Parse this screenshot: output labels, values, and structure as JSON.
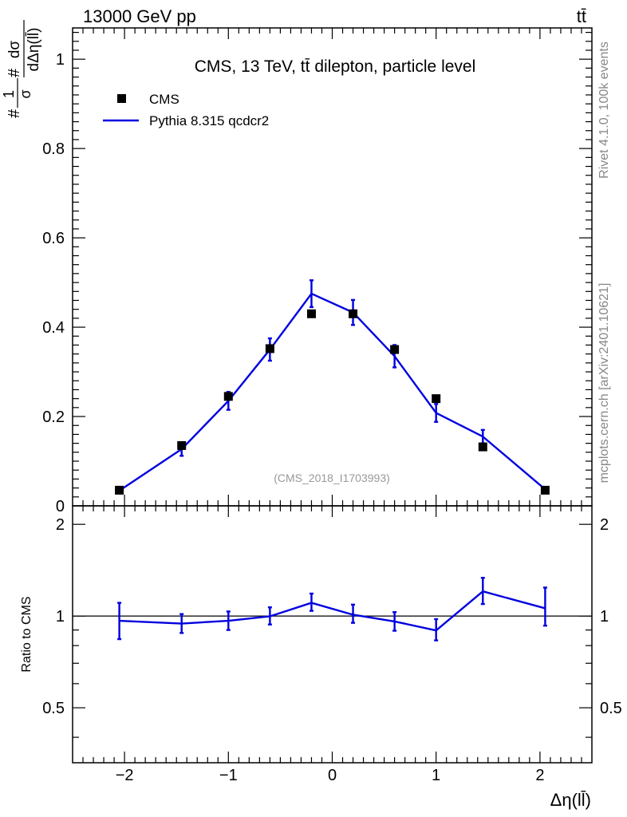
{
  "header": {
    "left": "13000 GeV pp",
    "right": "tt̄"
  },
  "side_labels": {
    "rivet": "Rivet 4.1.0,  100k events",
    "source": "mcplots.cern.ch [arXiv:2401.10621]"
  },
  "colors": {
    "data": "#000000",
    "mc": "#0000e0",
    "watermark": "#999999"
  },
  "chart_data": [
    {
      "type": "scatter",
      "panel": "main",
      "title": "CMS, 13 TeV, tt̄ dilepton, particle level",
      "watermark": "(CMS_2018_I1703993)",
      "ylabel": "#1/σ# dσ/dΔη(ll̄)",
      "ylabel_parts": {
        "hash1": "#",
        "num1": "1",
        "den1": "σ",
        "hash2": "#",
        "num2": "dσ",
        "den2": "dΔη(ll̄)"
      },
      "xlim": [
        -2.5,
        2.5
      ],
      "ylim": [
        0,
        1.07
      ],
      "yticks": [
        0,
        0.2,
        0.4,
        0.6,
        0.8,
        1
      ],
      "ytick_labels": [
        "0",
        "0.2",
        "0.4",
        "0.6",
        "0.8",
        "1"
      ],
      "legend": {
        "position": "top-left",
        "entries": [
          "CMS",
          "Pythia 8.315 qcdcr2"
        ]
      },
      "series": [
        {
          "name": "CMS",
          "style": "markers",
          "x": [
            -2.05,
            -1.45,
            -1.0,
            -0.6,
            -0.2,
            0.2,
            0.6,
            1.0,
            1.45,
            2.05
          ],
          "y": [
            0.035,
            0.135,
            0.245,
            0.352,
            0.43,
            0.43,
            0.35,
            0.24,
            0.132,
            0.035
          ]
        },
        {
          "name": "Pythia 8.315 qcdcr2",
          "style": "line",
          "x": [
            -2.05,
            -1.45,
            -1.0,
            -0.6,
            -0.2,
            0.2,
            0.6,
            1.0,
            1.45,
            2.05
          ],
          "y": [
            0.034,
            0.127,
            0.235,
            0.35,
            0.475,
            0.433,
            0.335,
            0.208,
            0.155,
            0.037
          ],
          "err": [
            0.003,
            0.015,
            0.02,
            0.025,
            0.03,
            0.028,
            0.025,
            0.02,
            0.015,
            0.004
          ]
        }
      ]
    },
    {
      "type": "line",
      "panel": "ratio",
      "ylabel": "Ratio to CMS",
      "xlabel": "Δη(ll̄)",
      "xlim": [
        -2.5,
        2.5
      ],
      "ylim": [
        0.33,
        2.3
      ],
      "xticks": [
        -2,
        -1,
        0,
        1,
        2
      ],
      "xtick_labels": [
        "−2",
        "−1",
        "0",
        "1",
        "2"
      ],
      "yticks": [
        0.5,
        1,
        2
      ],
      "ytick_labels": [
        "0.5",
        "1",
        "2"
      ],
      "reference": 1,
      "series": [
        {
          "name": "Pythia 8.315 qcdcr2",
          "x": [
            -2.05,
            -1.45,
            -1.0,
            -0.6,
            -0.2,
            0.2,
            0.6,
            1.0,
            1.45,
            2.05
          ],
          "y": [
            0.965,
            0.945,
            0.965,
            0.998,
            1.105,
            1.01,
            0.96,
            0.897,
            1.205,
            1.06
          ],
          "err_up": [
            0.14,
            0.07,
            0.07,
            0.07,
            0.08,
            0.08,
            0.07,
            0.08,
            0.13,
            0.18
          ],
          "err_down": [
            0.125,
            0.065,
            0.065,
            0.06,
            0.065,
            0.06,
            0.065,
            0.065,
            0.11,
            0.13
          ]
        }
      ]
    }
  ]
}
